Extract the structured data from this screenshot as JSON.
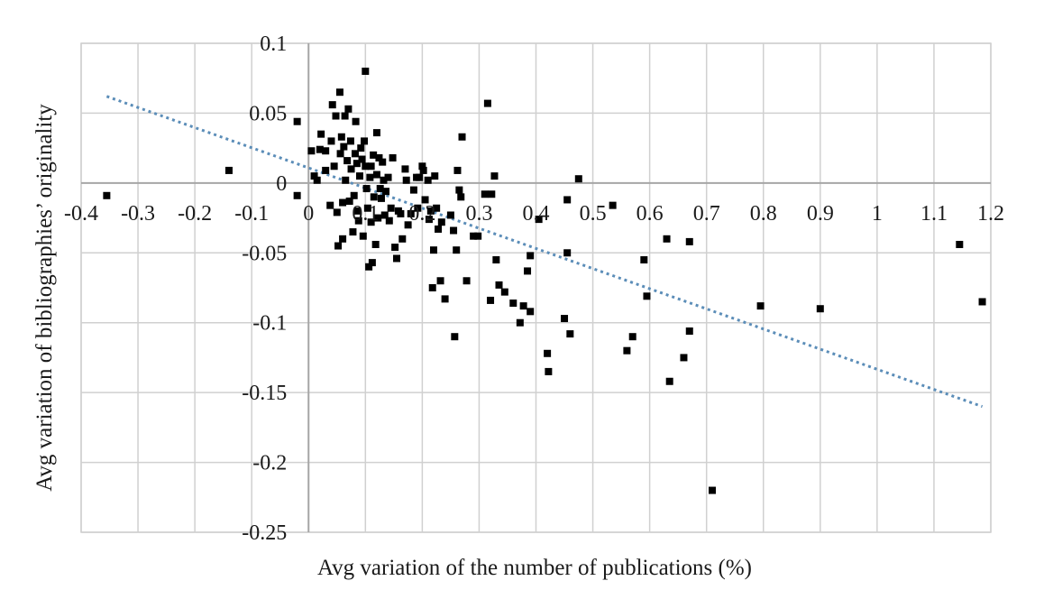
{
  "chart_data": {
    "type": "scatter",
    "title": "",
    "xlabel": "Avg variation of the number of publications (%)",
    "ylabel": "Avg variation of bibliographies’ originality",
    "xlim": [
      -0.4,
      1.2
    ],
    "ylim": [
      -0.25,
      0.1
    ],
    "grid": true,
    "legend": "none",
    "x_ticks": [
      "-0.4",
      "-0.3",
      "-0.2",
      "-0.1",
      "0",
      "0.1",
      "0.2",
      "0.3",
      "0.4",
      "0.5",
      "0.6",
      "0.7",
      "0.8",
      "0.9",
      "1",
      "1.1",
      "1.2"
    ],
    "y_ticks": [
      "0.1",
      "0.05",
      "0",
      "-0.05",
      "-0.1",
      "-0.15",
      "-0.2",
      "-0.25"
    ],
    "colors": {
      "points": "#000000",
      "trendline": "#5b8db8",
      "grid": "#d0d0d0",
      "axis": "#a6a6a6"
    },
    "series": [
      {
        "marker": "square",
        "points": [
          [
            -0.355,
            -0.009
          ],
          [
            -0.14,
            0.009
          ],
          [
            -0.02,
            0.044
          ],
          [
            -0.02,
            -0.009
          ],
          [
            0.005,
            0.023
          ],
          [
            0.01,
            0.005
          ],
          [
            0.015,
            0.002
          ],
          [
            0.02,
            0.024
          ],
          [
            0.03,
            0.023
          ],
          [
            0.022,
            0.035
          ],
          [
            0.03,
            0.009
          ],
          [
            0.038,
            -0.016
          ],
          [
            0.042,
            0.056
          ],
          [
            0.04,
            0.03
          ],
          [
            0.045,
            0.012
          ],
          [
            0.048,
            0.048
          ],
          [
            0.05,
            -0.021
          ],
          [
            0.052,
            -0.045
          ],
          [
            0.055,
            0.065
          ],
          [
            0.056,
            0.021
          ],
          [
            0.058,
            0.033
          ],
          [
            0.06,
            -0.04
          ],
          [
            0.06,
            -0.014
          ],
          [
            0.062,
            0.026
          ],
          [
            0.064,
            0.048
          ],
          [
            0.065,
            0.002
          ],
          [
            0.068,
            0.016
          ],
          [
            0.07,
            0.053
          ],
          [
            0.072,
            -0.013
          ],
          [
            0.074,
            0.03
          ],
          [
            0.075,
            0.01
          ],
          [
            0.078,
            -0.035
          ],
          [
            0.08,
            -0.009
          ],
          [
            0.082,
            0.021
          ],
          [
            0.083,
            0.044
          ],
          [
            0.085,
            0.014
          ],
          [
            0.086,
            -0.02
          ],
          [
            0.088,
            -0.027
          ],
          [
            0.09,
            0.005
          ],
          [
            0.092,
            0.025
          ],
          [
            0.094,
            0.017
          ],
          [
            0.096,
            -0.038
          ],
          [
            0.098,
            0.03
          ],
          [
            0.1,
            0.08
          ],
          [
            0.1,
            0.012
          ],
          [
            0.102,
            -0.004
          ],
          [
            0.104,
            -0.018
          ],
          [
            0.106,
            -0.06
          ],
          [
            0.108,
            0.004
          ],
          [
            0.11,
            0.012
          ],
          [
            0.11,
            -0.028
          ],
          [
            0.112,
            -0.057
          ],
          [
            0.114,
            0.02
          ],
          [
            0.115,
            -0.01
          ],
          [
            0.118,
            -0.044
          ],
          [
            0.12,
            0.036
          ],
          [
            0.12,
            0.006
          ],
          [
            0.122,
            -0.025
          ],
          [
            0.124,
            0.018
          ],
          [
            0.126,
            -0.004
          ],
          [
            0.128,
            -0.011
          ],
          [
            0.13,
            0.015
          ],
          [
            0.132,
            0.002
          ],
          [
            0.134,
            -0.023
          ],
          [
            0.136,
            -0.006
          ],
          [
            0.14,
            0.004
          ],
          [
            0.142,
            -0.027
          ],
          [
            0.145,
            -0.018
          ],
          [
            0.148,
            0.018
          ],
          [
            0.152,
            -0.046
          ],
          [
            0.155,
            -0.054
          ],
          [
            0.158,
            -0.02
          ],
          [
            0.162,
            -0.022
          ],
          [
            0.165,
            -0.04
          ],
          [
            0.17,
            0.01
          ],
          [
            0.172,
            0.002
          ],
          [
            0.175,
            -0.03
          ],
          [
            0.18,
            -0.022
          ],
          [
            0.185,
            -0.005
          ],
          [
            0.19,
            0.004
          ],
          [
            0.192,
            -0.018
          ],
          [
            0.195,
            0.004
          ],
          [
            0.2,
            0.012
          ],
          [
            0.202,
            0.009
          ],
          [
            0.205,
            -0.012
          ],
          [
            0.21,
            0.002
          ],
          [
            0.212,
            -0.026
          ],
          [
            0.215,
            -0.02
          ],
          [
            0.218,
            -0.075
          ],
          [
            0.22,
            -0.048
          ],
          [
            0.222,
            0.005
          ],
          [
            0.225,
            -0.018
          ],
          [
            0.228,
            -0.033
          ],
          [
            0.232,
            -0.07
          ],
          [
            0.234,
            -0.028
          ],
          [
            0.24,
            -0.083
          ],
          [
            0.25,
            -0.023
          ],
          [
            0.255,
            -0.034
          ],
          [
            0.257,
            -0.11
          ],
          [
            0.26,
            -0.048
          ],
          [
            0.262,
            0.009
          ],
          [
            0.265,
            -0.005
          ],
          [
            0.268,
            -0.01
          ],
          [
            0.27,
            0.033
          ],
          [
            0.278,
            -0.07
          ],
          [
            0.29,
            -0.038
          ],
          [
            0.298,
            -0.038
          ],
          [
            0.31,
            -0.008
          ],
          [
            0.315,
            0.057
          ],
          [
            0.32,
            -0.084
          ],
          [
            0.322,
            -0.008
          ],
          [
            0.327,
            0.005
          ],
          [
            0.33,
            -0.055
          ],
          [
            0.335,
            -0.073
          ],
          [
            0.345,
            -0.078
          ],
          [
            0.36,
            -0.086
          ],
          [
            0.372,
            -0.1
          ],
          [
            0.378,
            -0.088
          ],
          [
            0.385,
            -0.063
          ],
          [
            0.39,
            -0.052
          ],
          [
            0.39,
            -0.092
          ],
          [
            0.405,
            -0.026
          ],
          [
            0.42,
            -0.122
          ],
          [
            0.422,
            -0.135
          ],
          [
            0.45,
            -0.097
          ],
          [
            0.455,
            -0.012
          ],
          [
            0.455,
            -0.05
          ],
          [
            0.46,
            -0.108
          ],
          [
            0.475,
            0.003
          ],
          [
            0.535,
            -0.016
          ],
          [
            0.56,
            -0.12
          ],
          [
            0.57,
            -0.11
          ],
          [
            0.59,
            -0.055
          ],
          [
            0.595,
            -0.081
          ],
          [
            0.63,
            -0.04
          ],
          [
            0.635,
            -0.142
          ],
          [
            0.66,
            -0.125
          ],
          [
            0.67,
            -0.042
          ],
          [
            0.67,
            -0.106
          ],
          [
            0.71,
            -0.22
          ],
          [
            0.795,
            -0.088
          ],
          [
            0.9,
            -0.09
          ],
          [
            1.145,
            -0.044
          ],
          [
            1.185,
            -0.085
          ]
        ]
      }
    ],
    "trendline": {
      "type": "linear",
      "style": "dotted",
      "x": [
        -0.355,
        1.185
      ],
      "y": [
        0.062,
        -0.16
      ]
    }
  }
}
